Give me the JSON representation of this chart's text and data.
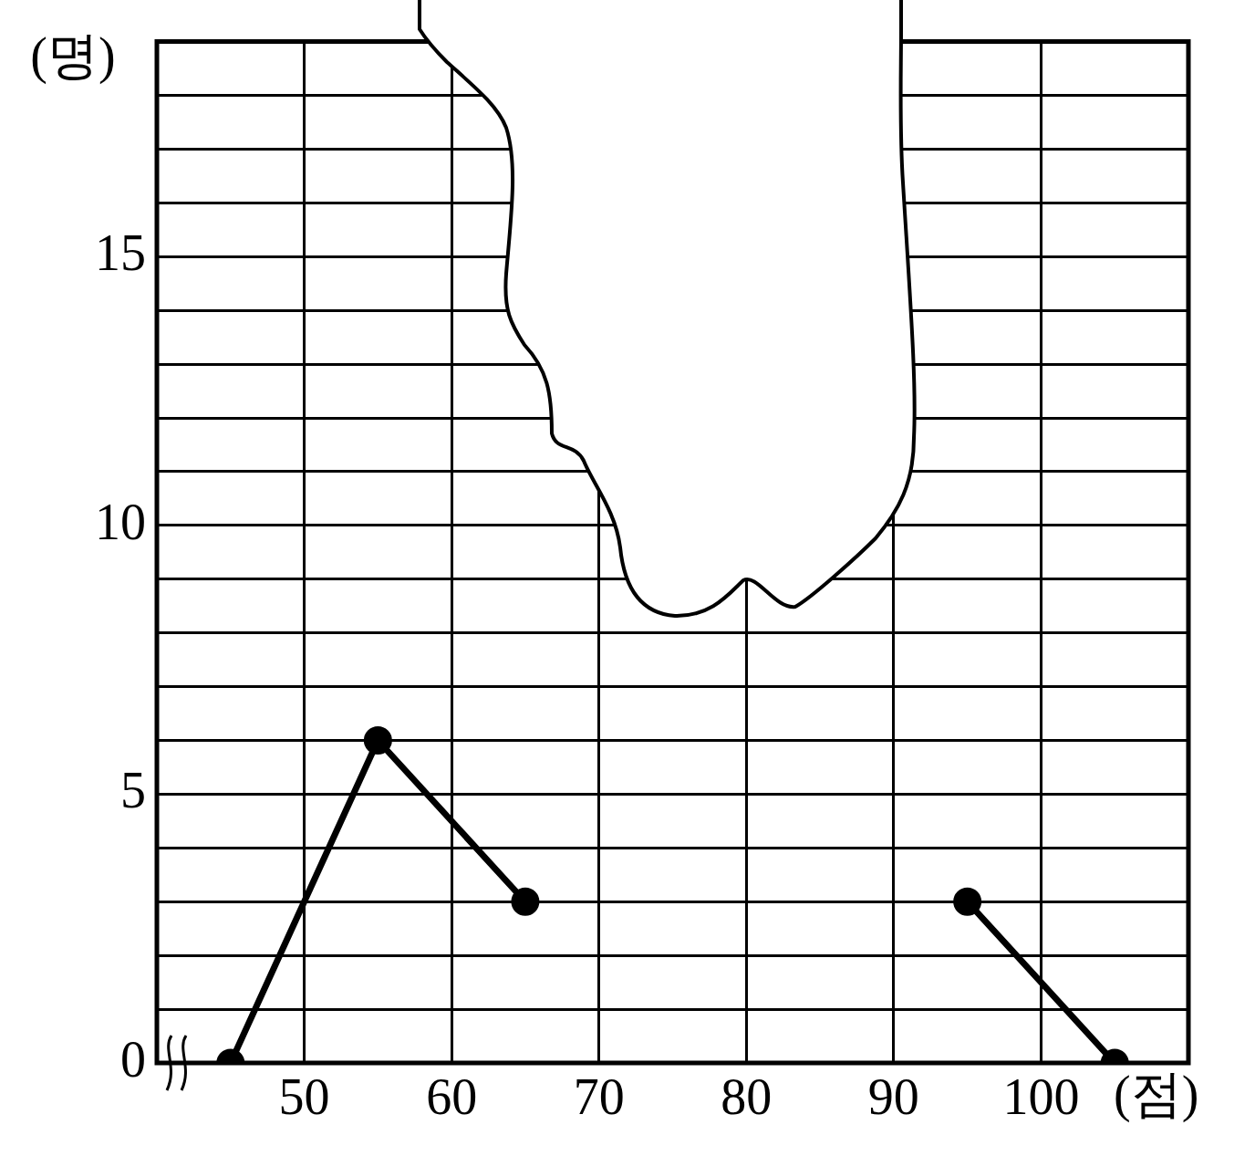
{
  "chart_data": {
    "type": "line",
    "xlabel": "(점)",
    "ylabel": "(명)",
    "x": [
      45,
      55,
      65,
      75,
      85,
      95,
      105
    ],
    "series": [
      {
        "color": "#000000",
        "values": [
          0,
          6,
          3,
          null,
          null,
          3,
          0
        ]
      }
    ],
    "xlim": [
      40,
      110
    ],
    "xticks": [
      {
        "value": 40,
        "label": null
      },
      50,
      60,
      70,
      80,
      90,
      100,
      {
        "value": 110,
        "label": null
      }
    ],
    "ylim": [
      0,
      19
    ],
    "yticks": [
      0,
      {
        "value": 1,
        "label": null
      },
      {
        "value": 2,
        "label": null
      },
      {
        "value": 3,
        "label": null
      },
      {
        "value": 4,
        "label": null
      },
      5,
      {
        "value": 6,
        "label": null
      },
      {
        "value": 7,
        "label": null
      },
      {
        "value": 8,
        "label": null
      },
      {
        "value": 9,
        "label": null
      },
      10,
      {
        "value": 11,
        "label": null
      },
      {
        "value": 12,
        "label": null
      },
      {
        "value": 13,
        "label": null
      },
      {
        "value": 14,
        "label": null
      },
      15,
      {
        "value": 16,
        "label": null
      },
      {
        "value": 17,
        "label": null
      },
      {
        "value": 18,
        "label": null
      },
      {
        "value": 19,
        "label": null
      }
    ],
    "grid": true,
    "marker": "circle",
    "line_style": "solid",
    "legend": false
  }
}
